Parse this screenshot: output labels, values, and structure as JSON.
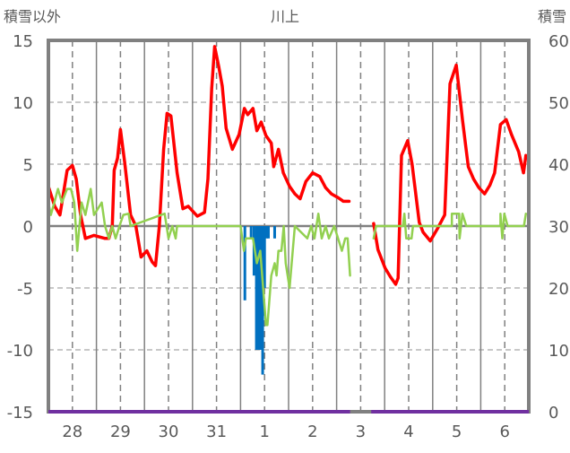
{
  "chart_data": {
    "type": "line",
    "title": "川上",
    "ylabel_left": "積雪以外",
    "ylabel_right": "積雪",
    "xlim": [
      0,
      10
    ],
    "ylim": [
      -15,
      15
    ],
    "y2lim": [
      0,
      60
    ],
    "grid": true,
    "yticks": [
      "15",
      "10",
      "5",
      "0",
      "-5",
      "-10",
      "-15"
    ],
    "ytick_values": [
      15,
      10,
      5,
      0,
      -5,
      -10,
      -15
    ],
    "y2ticks": [
      "60",
      "50",
      "40",
      "30",
      "20",
      "10",
      "0"
    ],
    "y2tick_values": [
      60,
      50,
      40,
      30,
      20,
      10,
      0
    ],
    "xticks": [
      "28",
      "29",
      "30",
      "31",
      "1",
      "2",
      "3",
      "4",
      "5",
      "6"
    ],
    "xtick_values": [
      0.5,
      1.5,
      2.5,
      3.5,
      4.5,
      5.5,
      6.5,
      7.5,
      8.5,
      9.5
    ],
    "colors": {
      "red": "#ff0000",
      "green": "#92d050",
      "blue": "#0070c0",
      "purple": "#7030a0",
      "axis": "#808080"
    },
    "series": [
      {
        "name": "red",
        "axis": "left",
        "segments": [
          [
            [
              0,
              3.2
            ],
            [
              0.13,
              1.6
            ],
            [
              0.24,
              0.9
            ],
            [
              0.39,
              4.5
            ],
            [
              0.5,
              4.9
            ],
            [
              0.58,
              3.8
            ],
            [
              0.67,
              0.9
            ],
            [
              0.77,
              -1
            ],
            [
              0.95,
              -0.75
            ],
            [
              1.18,
              -1
            ],
            [
              1.26,
              -1
            ],
            [
              1.33,
              0
            ],
            [
              1.37,
              4.5
            ],
            [
              1.44,
              5.5
            ],
            [
              1.5,
              7.8
            ],
            [
              1.59,
              5.1
            ],
            [
              1.71,
              0.9
            ],
            [
              1.82,
              0
            ],
            [
              1.93,
              -2.5
            ],
            [
              2.05,
              -2
            ],
            [
              2.16,
              -2.9
            ],
            [
              2.23,
              -3.2
            ],
            [
              2.31,
              0
            ],
            [
              2.4,
              6.2
            ],
            [
              2.47,
              9.1
            ],
            [
              2.55,
              8.9
            ],
            [
              2.68,
              4.3
            ],
            [
              2.8,
              1.4
            ],
            [
              2.91,
              1.6
            ],
            [
              3.1,
              0.8
            ],
            [
              3.25,
              1.1
            ],
            [
              3.32,
              3.8
            ],
            [
              3.4,
              11.1
            ],
            [
              3.46,
              14.5
            ],
            [
              3.55,
              12.8
            ],
            [
              3.62,
              11.3
            ],
            [
              3.7,
              7.9
            ],
            [
              3.83,
              6.2
            ],
            [
              3.97,
              7.4
            ],
            [
              4.08,
              9.5
            ],
            [
              4.15,
              9.0
            ],
            [
              4.26,
              9.5
            ],
            [
              4.34,
              7.7
            ],
            [
              4.43,
              8.4
            ],
            [
              4.53,
              7.3
            ],
            [
              4.64,
              6.7
            ],
            [
              4.69,
              4.8
            ],
            [
              4.79,
              6.2
            ],
            [
              4.89,
              4.3
            ],
            [
              5.02,
              3.2
            ],
            [
              5.13,
              2.6
            ],
            [
              5.24,
              2.2
            ],
            [
              5.36,
              3.6
            ],
            [
              5.5,
              4.3
            ],
            [
              5.65,
              4.0
            ],
            [
              5.77,
              3.1
            ],
            [
              5.89,
              2.6
            ],
            [
              6.03,
              2.3
            ],
            [
              6.14,
              2.0
            ],
            [
              6.26,
              2.0
            ]
          ],
          [
            [
              6.77,
              0.2
            ],
            [
              6.86,
              -1.9
            ],
            [
              7.01,
              -3.4
            ],
            [
              7.12,
              -4.1
            ],
            [
              7.23,
              -4.7
            ],
            [
              7.28,
              -4.2
            ],
            [
              7.35,
              5.7
            ],
            [
              7.48,
              6.9
            ],
            [
              7.57,
              5
            ],
            [
              7.72,
              0.3
            ],
            [
              7.8,
              -0.5
            ],
            [
              7.95,
              -1.2
            ],
            [
              8.1,
              -0.2
            ],
            [
              8.25,
              0.9
            ],
            [
              8.36,
              11.5
            ],
            [
              8.49,
              13
            ],
            [
              8.62,
              8.6
            ],
            [
              8.74,
              4.8
            ],
            [
              8.85,
              3.8
            ],
            [
              8.96,
              3.1
            ],
            [
              9.08,
              2.6
            ],
            [
              9.19,
              3.3
            ],
            [
              9.29,
              4.3
            ],
            [
              9.41,
              8.2
            ],
            [
              9.53,
              8.6
            ],
            [
              9.64,
              7.4
            ],
            [
              9.79,
              6.0
            ],
            [
              9.89,
              4.3
            ],
            [
              9.94,
              5.7
            ]
          ]
        ]
      },
      {
        "name": "green",
        "axis": "left",
        "segments": [
          [
            [
              0,
              1.9
            ],
            [
              0.05,
              0.9
            ],
            [
              0.13,
              2
            ],
            [
              0.2,
              3
            ],
            [
              0.28,
              1.9
            ],
            [
              0.39,
              3
            ],
            [
              0.47,
              3
            ],
            [
              0.54,
              1.9
            ],
            [
              0.6,
              -2
            ],
            [
              0.69,
              1.9
            ],
            [
              0.77,
              0.9
            ],
            [
              0.88,
              3
            ],
            [
              0.95,
              0.9
            ],
            [
              1.11,
              1.9
            ],
            [
              1.18,
              0
            ],
            [
              1.26,
              -1
            ],
            [
              1.33,
              0
            ],
            [
              1.4,
              -1
            ],
            [
              1.48,
              0
            ],
            [
              1.56,
              0.9
            ],
            [
              1.67,
              1
            ],
            [
              1.71,
              0
            ],
            [
              2.42,
              1
            ],
            [
              2.5,
              -1
            ],
            [
              2.58,
              0
            ],
            [
              2.65,
              -1
            ],
            [
              2.68,
              0
            ],
            [
              4.0,
              0
            ],
            [
              4.07,
              -2
            ],
            [
              4.11,
              -1
            ],
            [
              4.26,
              -1
            ],
            [
              4.34,
              -3
            ],
            [
              4.41,
              -2
            ],
            [
              4.53,
              -8
            ],
            [
              4.56,
              -8
            ],
            [
              4.64,
              -4
            ],
            [
              4.71,
              -3
            ],
            [
              4.75,
              -4
            ],
            [
              4.79,
              -2
            ],
            [
              4.85,
              -2
            ],
            [
              4.9,
              0
            ],
            [
              4.94,
              -3
            ],
            [
              5.02,
              -5
            ],
            [
              5.13,
              0
            ],
            [
              5.39,
              -1
            ],
            [
              5.47,
              0
            ],
            [
              5.54,
              -1
            ],
            [
              5.62,
              1
            ],
            [
              5.69,
              -1
            ],
            [
              5.77,
              0
            ],
            [
              5.84,
              -1
            ],
            [
              5.95,
              0
            ],
            [
              6.03,
              -1
            ],
            [
              6.11,
              -2
            ],
            [
              6.18,
              -1
            ],
            [
              6.23,
              -1
            ],
            [
              6.28,
              -4
            ]
          ],
          [
            [
              6.77,
              -1
            ],
            [
              6.82,
              0
            ],
            [
              7.38,
              0
            ],
            [
              7.41,
              1
            ],
            [
              7.45,
              -1
            ],
            [
              7.56,
              -1
            ],
            [
              7.59,
              0
            ],
            [
              8.4,
              0
            ],
            [
              8.4,
              1
            ],
            [
              8.55,
              1
            ],
            [
              8.56,
              -1
            ],
            [
              8.62,
              1
            ],
            [
              8.7,
              0
            ],
            [
              9.41,
              0
            ],
            [
              9.41,
              1
            ],
            [
              9.45,
              -1
            ],
            [
              9.49,
              1
            ],
            [
              9.56,
              0
            ],
            [
              9.9,
              0
            ],
            [
              9.94,
              1
            ]
          ]
        ]
      },
      {
        "name": "purple",
        "axis": "right",
        "segments": [
          [
            [
              0,
              0
            ],
            [
              6.28,
              0
            ]
          ],
          [
            [
              6.72,
              0
            ],
            [
              10,
              0
            ]
          ]
        ]
      }
    ],
    "bars": {
      "name": "blue",
      "axis": "left",
      "values": [
        [
          4.09,
          -6
        ],
        [
          4.22,
          -1
        ],
        [
          4.28,
          -4
        ],
        [
          4.33,
          -10
        ],
        [
          4.37,
          -10
        ],
        [
          4.42,
          -10
        ],
        [
          4.46,
          -12
        ],
        [
          4.5,
          -5
        ],
        [
          4.54,
          -1
        ],
        [
          4.58,
          -1
        ],
        [
          4.71,
          -1
        ]
      ]
    }
  }
}
